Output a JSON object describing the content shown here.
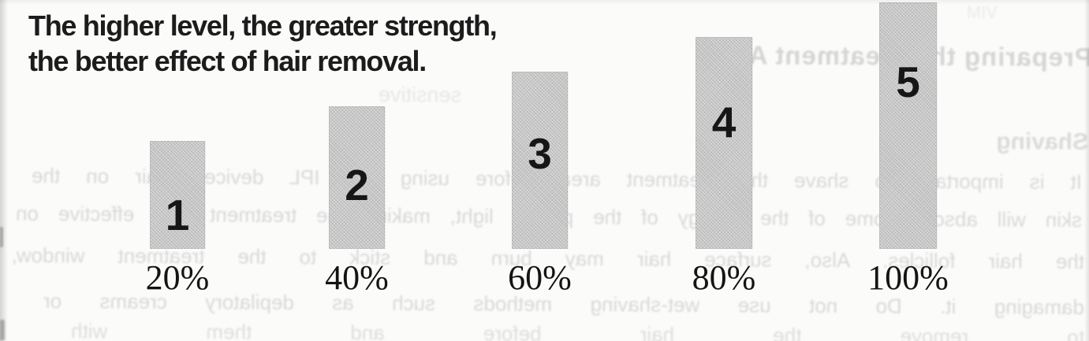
{
  "page": {
    "paper_color": "#fbfbfa"
  },
  "caption": {
    "line1": "The higher level, the greater strength,",
    "line2": "the better effect of hair removal."
  },
  "chart_data": {
    "type": "bar",
    "title": "The higher level, the greater strength, the better effect of hair removal.",
    "categories": [
      "20%",
      "40%",
      "60%",
      "80%",
      "100%"
    ],
    "values": [
      20,
      40,
      60,
      80,
      100
    ],
    "bar_labels": [
      "1",
      "2",
      "3",
      "4",
      "5"
    ],
    "xlabel": "",
    "ylabel": "",
    "ylim": [
      0,
      100
    ],
    "grid": false,
    "legend": false,
    "bar_color": "#c6c6c6",
    "bar_label_color": "#161616",
    "tick_label_color": "#141414"
  },
  "bleed_through": {
    "heading": "Preparing the Treatment Area",
    "subheading": "Shaving",
    "lines": [
      "It is important to shave the treatment area before using the IPL device. Hair on the",
      "skin will absorb some of the energy of the pulsed light, making the treatment less effective on",
      "the hair follicles. Also, surface hair may burn and stick to the treatment window,",
      "damaging it. Do not use wet-shaving methods such as depilatory creams or",
      "to remove the hair before and them with"
    ],
    "fragments": [
      "sensitive",
      "VIM"
    ]
  }
}
